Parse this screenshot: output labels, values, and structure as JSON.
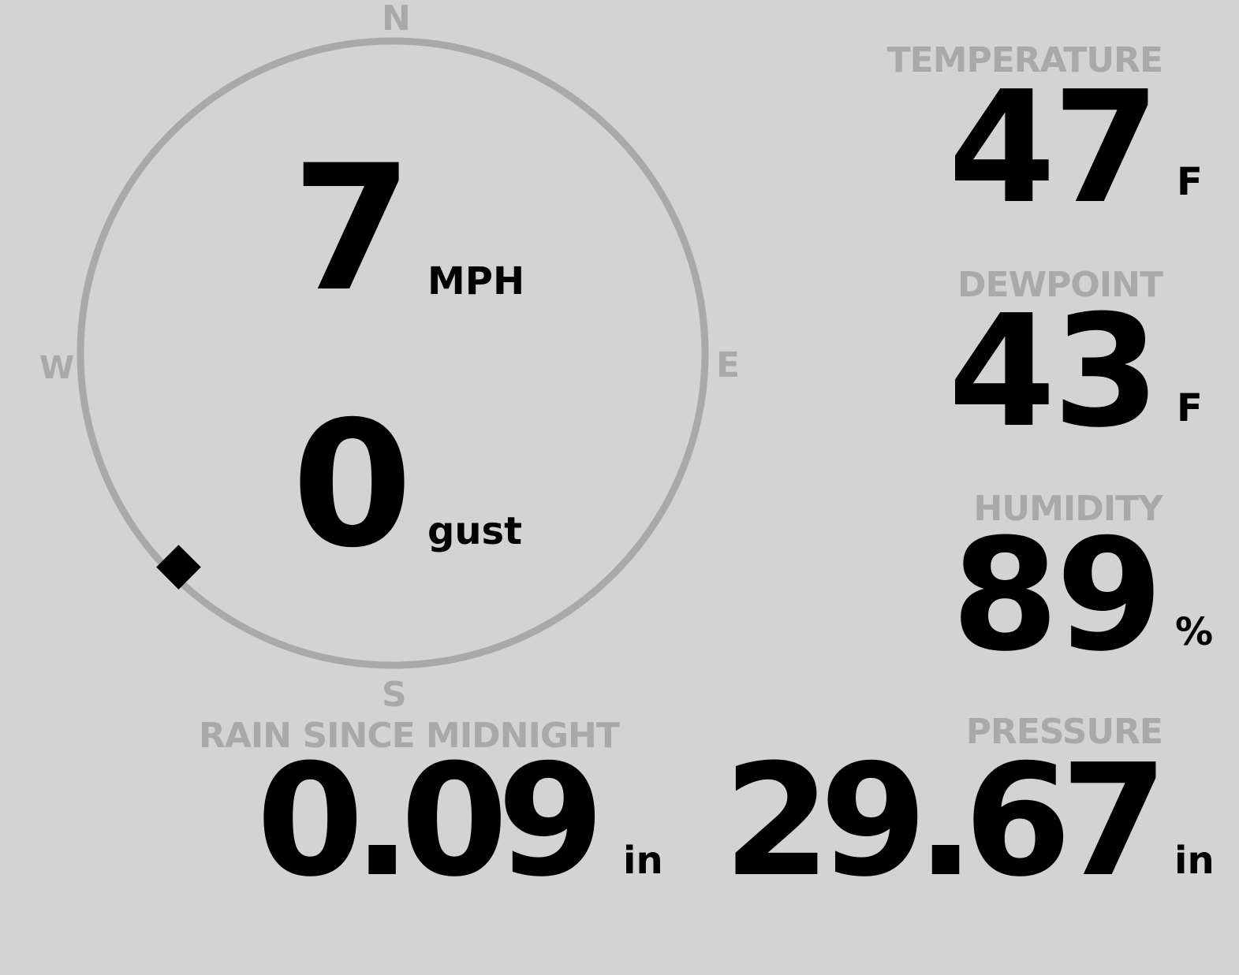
{
  "wind": {
    "speed": "7",
    "speed_unit": "MPH",
    "gust": "0",
    "gust_label": "gust",
    "direction_deg": 225,
    "compass": {
      "n": "N",
      "e": "E",
      "s": "S",
      "w": "W"
    },
    "colors": {
      "ring": "#a9a9a9",
      "marker": "#000000"
    }
  },
  "temperature": {
    "label": "TEMPERATURE",
    "value": "47",
    "unit": "F"
  },
  "dewpoint": {
    "label": "DEWPOINT",
    "value": "43",
    "unit": "F"
  },
  "humidity": {
    "label": "HUMIDITY",
    "value": "89",
    "unit": "%"
  },
  "rain": {
    "label": "RAIN SINCE MIDNIGHT",
    "value": "0.09",
    "unit": "in"
  },
  "pressure": {
    "label": "PRESSURE",
    "value": "29.67",
    "unit": "in"
  },
  "colors": {
    "background": "#d3d3d3",
    "label": "#a9a9a9",
    "value": "#000000"
  }
}
